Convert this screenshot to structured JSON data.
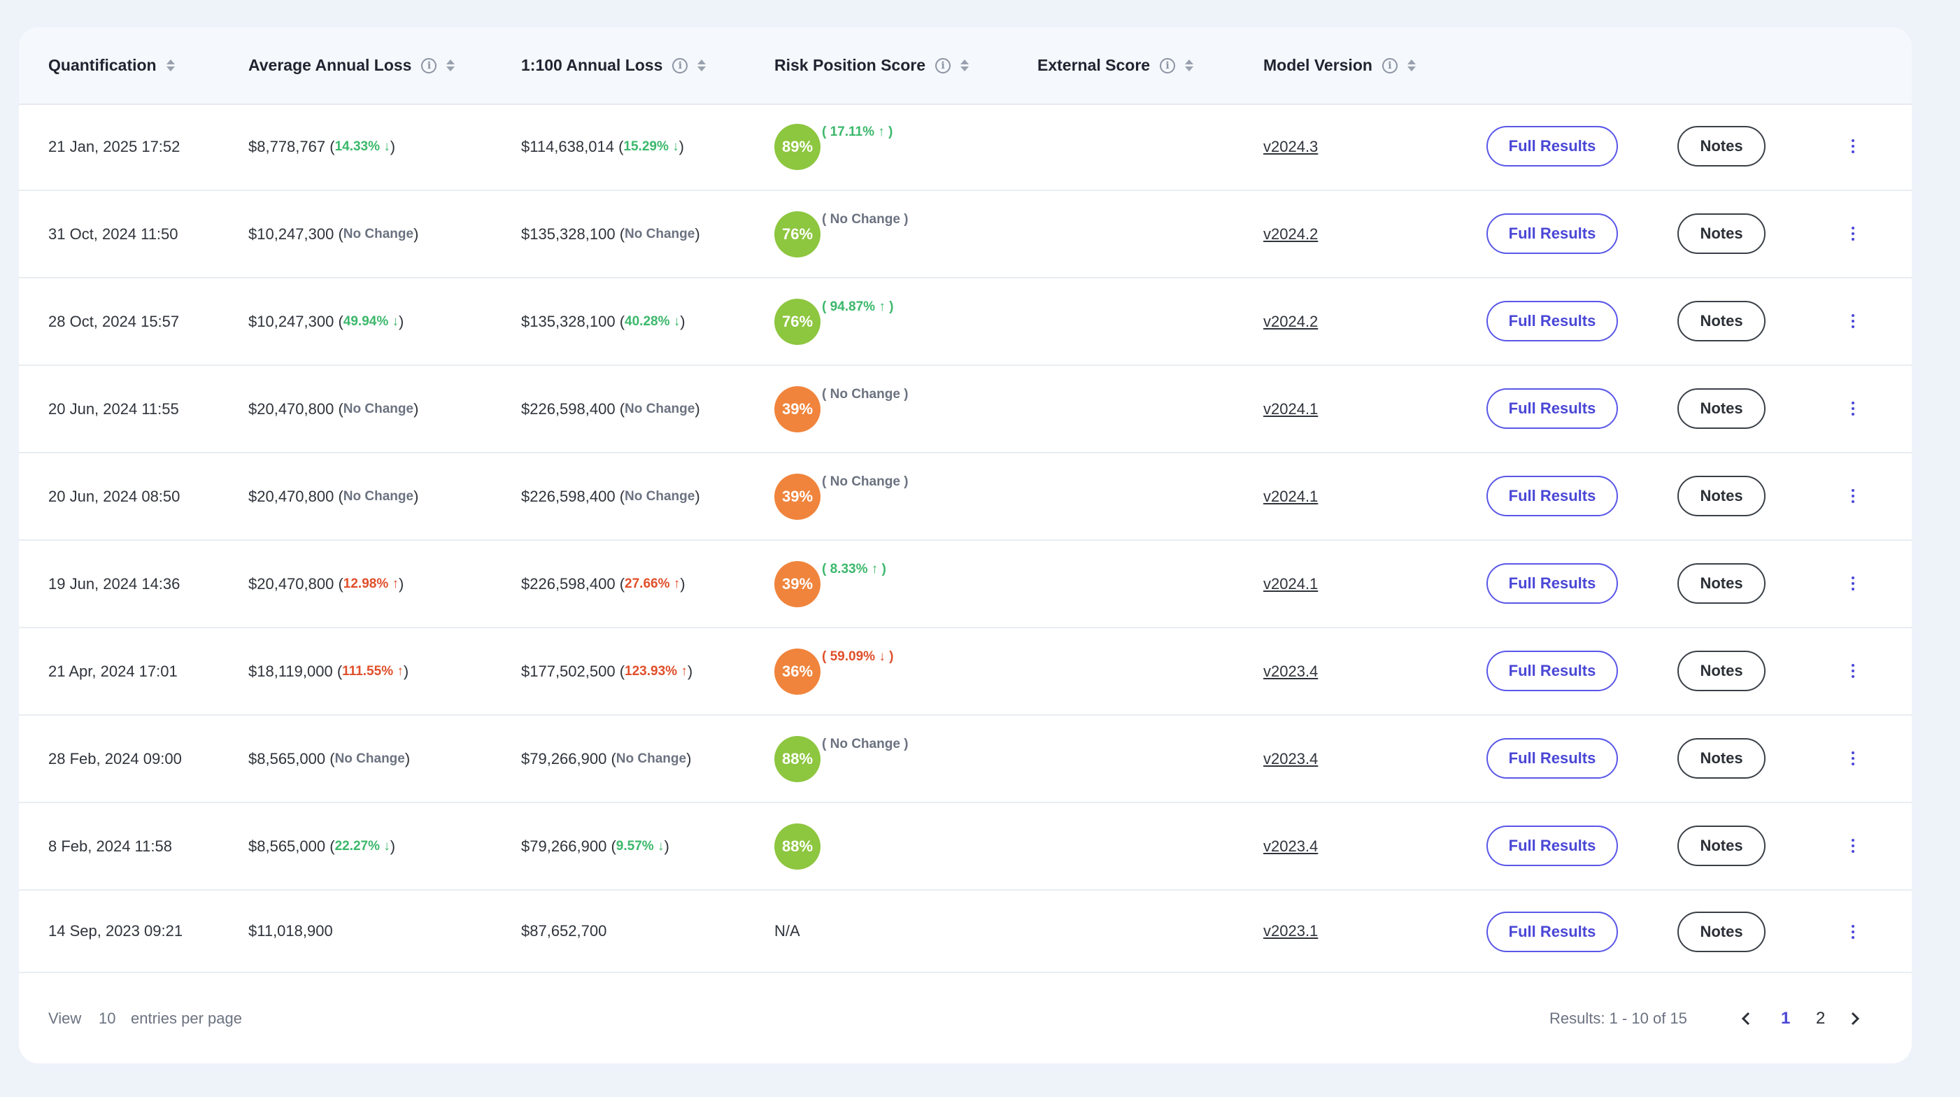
{
  "columns": {
    "quantification": "Quantification",
    "aal": "Average Annual Loss",
    "loss100": "1:100 Annual Loss",
    "rps": "Risk Position Score",
    "external": "External Score",
    "model": "Model Version"
  },
  "buttons": {
    "full_results": "Full Results",
    "notes": "Notes"
  },
  "colors": {
    "green_badge": "#8dc63f",
    "orange_badge": "#f0843c",
    "accent": "#4a47d6"
  },
  "rows": [
    {
      "date": "21 Jan, 2025 17:52",
      "aal": "$8,778,767",
      "aal_chg": "14.33% ↓",
      "aal_tone": "g",
      "l100": "$114,638,014",
      "l100_chg": "15.29% ↓",
      "l100_tone": "g",
      "rps": "89%",
      "rps_tone": "green",
      "rps_chg": "( 17.11% ↑ )",
      "rps_chg_tone": "g",
      "ver": "v2024.3"
    },
    {
      "date": "31 Oct, 2024 11:50",
      "aal": "$10,247,300",
      "aal_chg": "No Change",
      "aal_tone": "n",
      "l100": "$135,328,100",
      "l100_chg": "No Change",
      "l100_tone": "n",
      "rps": "76%",
      "rps_tone": "green",
      "rps_chg": "( No Change )",
      "rps_chg_tone": "n",
      "ver": "v2024.2"
    },
    {
      "date": "28 Oct, 2024 15:57",
      "aal": "$10,247,300",
      "aal_chg": "49.94% ↓",
      "aal_tone": "g",
      "l100": "$135,328,100",
      "l100_chg": "40.28% ↓",
      "l100_tone": "g",
      "rps": "76%",
      "rps_tone": "green",
      "rps_chg": "( 94.87% ↑ )",
      "rps_chg_tone": "g",
      "ver": "v2024.2"
    },
    {
      "date": "20 Jun, 2024 11:55",
      "aal": "$20,470,800",
      "aal_chg": "No Change",
      "aal_tone": "n",
      "l100": "$226,598,400",
      "l100_chg": "No Change",
      "l100_tone": "n",
      "rps": "39%",
      "rps_tone": "orange",
      "rps_chg": "( No Change )",
      "rps_chg_tone": "n",
      "ver": "v2024.1"
    },
    {
      "date": "20 Jun, 2024 08:50",
      "aal": "$20,470,800",
      "aal_chg": "No Change",
      "aal_tone": "n",
      "l100": "$226,598,400",
      "l100_chg": "No Change",
      "l100_tone": "n",
      "rps": "39%",
      "rps_tone": "orange",
      "rps_chg": "( No Change )",
      "rps_chg_tone": "n",
      "ver": "v2024.1"
    },
    {
      "date": "19 Jun, 2024 14:36",
      "aal": "$20,470,800",
      "aal_chg": "12.98% ↑",
      "aal_tone": "r",
      "l100": "$226,598,400",
      "l100_chg": "27.66% ↑",
      "l100_tone": "r",
      "rps": "39%",
      "rps_tone": "orange",
      "rps_chg": "( 8.33% ↑ )",
      "rps_chg_tone": "g",
      "ver": "v2024.1"
    },
    {
      "date": "21 Apr, 2024 17:01",
      "aal": "$18,119,000",
      "aal_chg": "111.55% ↑",
      "aal_tone": "r",
      "l100": "$177,502,500",
      "l100_chg": "123.93% ↑",
      "l100_tone": "r",
      "rps": "36%",
      "rps_tone": "orange",
      "rps_chg": "( 59.09% ↓ )",
      "rps_chg_tone": "r",
      "ver": "v2023.4"
    },
    {
      "date": "28 Feb, 2024 09:00",
      "aal": "$8,565,000",
      "aal_chg": "No Change",
      "aal_tone": "n",
      "l100": "$79,266,900",
      "l100_chg": "No Change",
      "l100_tone": "n",
      "rps": "88%",
      "rps_tone": "green",
      "rps_chg": "( No Change )",
      "rps_chg_tone": "n",
      "ver": "v2023.4"
    },
    {
      "date": "8 Feb, 2024 11:58",
      "aal": "$8,565,000",
      "aal_chg": "22.27% ↓",
      "aal_tone": "g",
      "l100": "$79,266,900",
      "l100_chg": "9.57% ↓",
      "l100_tone": "g",
      "rps": "88%",
      "rps_tone": "green",
      "rps_chg": "",
      "rps_chg_tone": "n",
      "ver": "v2023.4"
    },
    {
      "date": "14 Sep, 2023 09:21",
      "aal": "$11,018,900",
      "aal_chg": "",
      "aal_tone": "n",
      "l100": "$87,652,700",
      "l100_chg": "",
      "l100_tone": "n",
      "rps": "N/A",
      "rps_tone": "none",
      "rps_chg": "",
      "rps_chg_tone": "n",
      "ver": "v2023.1"
    }
  ],
  "footer": {
    "view_label": "View",
    "per_page": "10",
    "entries_label": "entries per page",
    "results": "Results: 1 - 10 of 15",
    "pages": [
      "1",
      "2"
    ],
    "current_page": "1"
  }
}
